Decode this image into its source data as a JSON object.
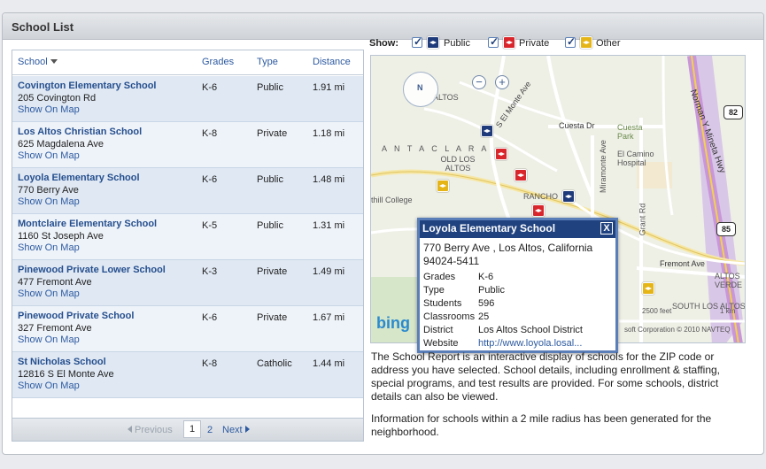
{
  "panel": {
    "title": "School List"
  },
  "table": {
    "headers": {
      "school": "School",
      "grades": "Grades",
      "type": "Type",
      "distance": "Distance"
    },
    "rows": [
      {
        "name": "Covington Elementary School",
        "address": "205 Covington Rd",
        "map_link": "Show On Map",
        "grades": "K-6",
        "type": "Public",
        "distance": "1.91 mi"
      },
      {
        "name": "Los Altos Christian School",
        "address": "625 Magdalena Ave",
        "map_link": "Show On Map",
        "grades": "K-8",
        "type": "Private",
        "distance": "1.18 mi"
      },
      {
        "name": "Loyola Elementary School",
        "address": "770 Berry Ave",
        "map_link": "Show On Map",
        "grades": "K-6",
        "type": "Public",
        "distance": "1.48 mi"
      },
      {
        "name": "Montclaire Elementary School",
        "address": "1160 St Joseph Ave",
        "map_link": "Show On Map",
        "grades": "K-5",
        "type": "Public",
        "distance": "1.31 mi"
      },
      {
        "name": "Pinewood Private Lower School",
        "address": "477 Fremont Ave",
        "map_link": "Show On Map",
        "grades": "K-3",
        "type": "Private",
        "distance": "1.49 mi"
      },
      {
        "name": "Pinewood Private School",
        "address": "327 Fremont Ave",
        "map_link": "Show On Map",
        "grades": "K-6",
        "type": "Private",
        "distance": "1.67 mi"
      },
      {
        "name": "St Nicholas School",
        "address": "12816 S El Monte Ave",
        "map_link": "Show On Map",
        "grades": "K-8",
        "type": "Catholic",
        "distance": "1.44 mi"
      }
    ]
  },
  "pager": {
    "previous": "Previous",
    "current": "1",
    "page2": "2",
    "next": "Next"
  },
  "filters": {
    "label": "Show:",
    "public": "Public",
    "private": "Private",
    "other": "Other"
  },
  "map": {
    "nav_n": "N",
    "labels": {
      "los_altos_top": "ALTOS",
      "el_monte": "S El Monte Ave",
      "cuesta": "Cuesta Dr",
      "cuesta_park": "Cuesta Park",
      "el_camino": "El Camino Hospital",
      "santa_clara": "A N T A    C L A R A",
      "old_los_altos": "OLD LOS ALTOS",
      "rancho": "RANCHO",
      "hill_college": "thill College",
      "miramonte": "Miramonte Ave",
      "grant": "Grant Rd",
      "norman": "Norman Y Mineta Hwy",
      "fremont": "Fremont Ave",
      "altos_verde": "ALTOS VERDE",
      "south_los_altos": "SOUTH LOS ALTOS",
      "scale_feet": "2500 feet",
      "scale_km": "1 km",
      "copyright": "soft Corporation  © 2010 NAVTEQ",
      "bing": "bing"
    },
    "shields": {
      "r82": "82",
      "r85": "85",
      "r85_small": "85"
    },
    "colors": {
      "public": "#1f3a7a",
      "private": "#d8262c",
      "other": "#e5b517"
    }
  },
  "popup": {
    "title": "Loyola Elementary School",
    "close": "X",
    "address": "770 Berry Ave , Los Altos, California 94024-5411",
    "fields": [
      {
        "key": "Grades",
        "value": "K-6"
      },
      {
        "key": "Type",
        "value": "Public"
      },
      {
        "key": "Students",
        "value": "596"
      },
      {
        "key": "Classrooms",
        "value": "25"
      },
      {
        "key": "District",
        "value": "Los Altos School District"
      },
      {
        "key": "Website",
        "value": "http://www.loyola.losal..."
      }
    ]
  },
  "description": {
    "p1": "The School Report is an interactive display of schools for the ZIP code or address you have selected. School details, including enrollment & staffing, special programs, and test results are provided. For some schools, district details can also be viewed.",
    "p2": "Information for schools within a 2 mile radius has been generated for the neighborhood."
  }
}
